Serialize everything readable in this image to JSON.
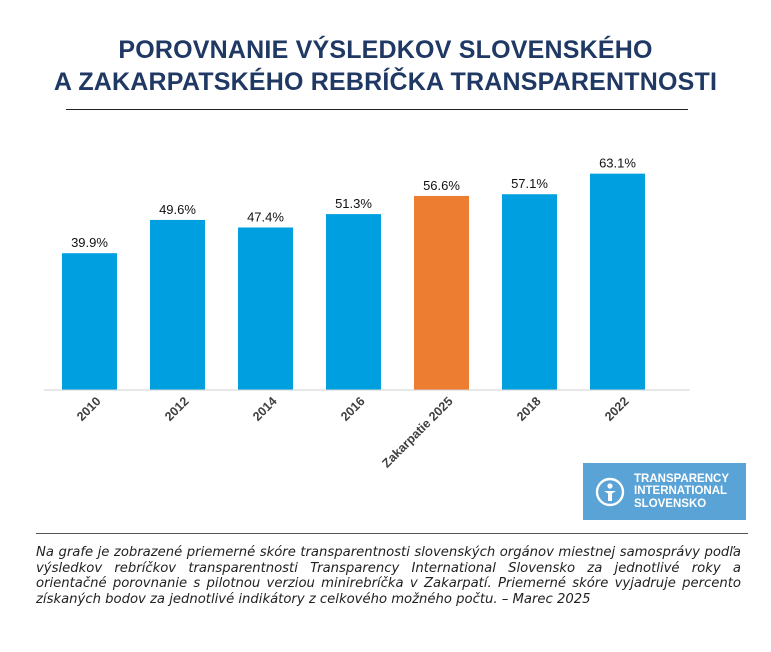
{
  "header": {
    "title_line1": "POROVNANIE VÝSLEDKOV SLOVENSKÉHO",
    "title_line2": "A ZAKARPATSKÉHO REBRÍČKA TRANSPARENTNOSTI"
  },
  "chart_data": {
    "type": "bar",
    "categories": [
      "2010",
      "2012",
      "2014",
      "2016",
      "Zakarpatie 2025",
      "2018",
      "2022"
    ],
    "values": [
      39.9,
      49.6,
      47.4,
      51.3,
      56.6,
      57.1,
      63.1
    ],
    "data_labels": [
      "39.9%",
      "49.6%",
      "47.4%",
      "51.3%",
      "56.6%",
      "57.1%",
      "63.1%"
    ],
    "highlight_index": 4,
    "colors": {
      "default": "#00a0e0",
      "highlight": "#ed7d31"
    },
    "ylim": [
      0,
      70
    ],
    "title": "",
    "xlabel": "",
    "ylabel": "",
    "grid": false,
    "legend": "none"
  },
  "logo": {
    "line1": "TRANSPARENCY",
    "line2": "INTERNATIONAL",
    "line3": "SLOVENSKO",
    "icon": "transparency-international-logo-icon"
  },
  "footnote": {
    "text": "Na grafe je zobrazené priemerné skóre transparentnosti slovenských orgánov miestnej samosprávy podľa výsledkov rebríčkov transparentnosti Transparency International Slovensko za jednotlivé roky a orientačné porovnanie s pilotnou verziou minirebríčka v Zakarpatí. Priemerné skóre vyjadruje percento získaných bodov za jednotlivé indikátory z celkového možného počtu. – Marec 2025"
  }
}
